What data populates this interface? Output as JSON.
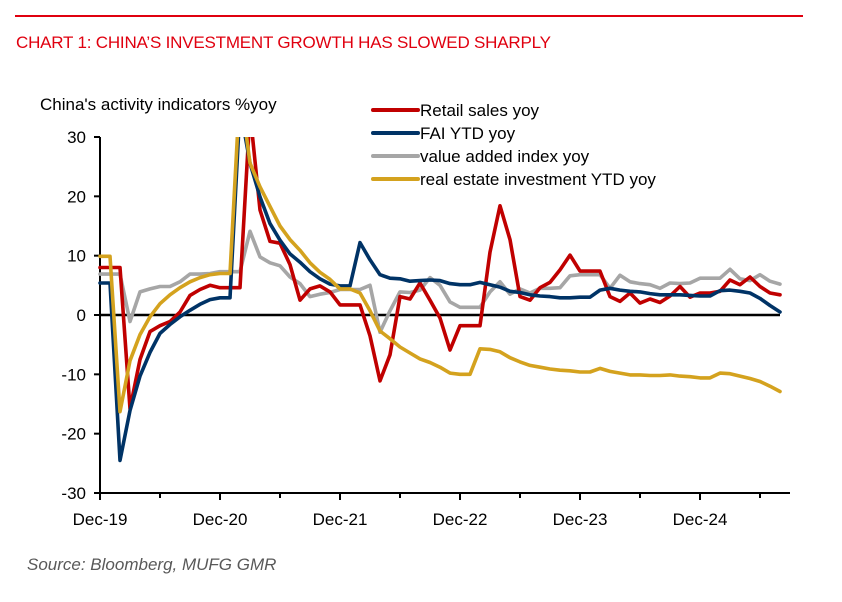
{
  "header": {
    "title": "CHART 1: CHINA’S INVESTMENT GROWTH HAS SLOWED SHARPLY"
  },
  "footer": {
    "source": "Source: Bloomberg, MUFG GMR"
  },
  "chart_data": {
    "type": "line",
    "title": "CHART 1: CHINA’S INVESTMENT GROWTH HAS SLOWED SHARPLY",
    "ylabel": "China's activity indicators %yoy",
    "xlabel": "",
    "ylim": [
      -30,
      30
    ],
    "yticks": [
      30,
      20,
      10,
      0,
      -10,
      -20,
      -30
    ],
    "ytick_labels": [
      "30",
      "20",
      "10",
      "0",
      "-10",
      "-20",
      "-30"
    ],
    "x_start": "Dec-19",
    "x_end": "Sep-25",
    "xtick_labels": [
      "Dec-19",
      "Dec-20",
      "Dec-21",
      "Dec-22",
      "Dec-23",
      "Dec-24"
    ],
    "xtick_months": [
      0,
      12,
      24,
      36,
      48,
      60
    ],
    "minor_tick_months": [
      6,
      18,
      30,
      42,
      54,
      66
    ],
    "axis_end_month": 69,
    "zero_line": true,
    "grid": false,
    "legend_position": "top-center",
    "colors": {
      "retail": "#c00000",
      "fai": "#003366",
      "vai": "#a6a6a6",
      "re": "#d4a21e"
    },
    "x": [
      "Dec-19",
      "Jan-20",
      "Feb-20",
      "Mar-20",
      "Apr-20",
      "May-20",
      "Jun-20",
      "Jul-20",
      "Aug-20",
      "Sep-20",
      "Oct-20",
      "Nov-20",
      "Dec-20",
      "Jan-21",
      "Feb-21",
      "Mar-21",
      "Apr-21",
      "May-21",
      "Jun-21",
      "Jul-21",
      "Aug-21",
      "Sep-21",
      "Oct-21",
      "Nov-21",
      "Dec-21",
      "Jan-22",
      "Feb-22",
      "Mar-22",
      "Apr-22",
      "May-22",
      "Jun-22",
      "Jul-22",
      "Aug-22",
      "Sep-22",
      "Oct-22",
      "Nov-22",
      "Dec-22",
      "Jan-23",
      "Feb-23",
      "Mar-23",
      "Apr-23",
      "May-23",
      "Jun-23",
      "Jul-23",
      "Aug-23",
      "Sep-23",
      "Oct-23",
      "Nov-23",
      "Dec-23",
      "Jan-24",
      "Feb-24",
      "Mar-24",
      "Apr-24",
      "May-24",
      "Jun-24",
      "Jul-24",
      "Aug-24",
      "Sep-24",
      "Oct-24",
      "Nov-24",
      "Dec-24",
      "Jan-25",
      "Feb-25",
      "Mar-25",
      "Apr-25",
      "May-25",
      "Jun-25",
      "Jul-25",
      "Aug-25"
    ],
    "series": [
      {
        "key": "retail",
        "name": "Retail sales yoy",
        "values": [
          8.0,
          8.0,
          8.0,
          -15.8,
          -7.5,
          -2.8,
          -1.8,
          -1.1,
          0.5,
          3.3,
          4.3,
          5.0,
          4.6,
          4.6,
          4.6,
          34.2,
          17.7,
          12.4,
          12.1,
          8.5,
          2.5,
          4.4,
          4.9,
          3.9,
          1.7,
          1.7,
          1.7,
          -3.5,
          -11.1,
          -6.7,
          3.1,
          2.7,
          5.4,
          2.5,
          -0.5,
          -5.9,
          -1.8,
          -1.8,
          -1.8,
          10.6,
          18.4,
          12.7,
          3.1,
          2.5,
          4.6,
          5.5,
          7.6,
          10.1,
          7.4,
          7.4,
          7.4,
          3.1,
          2.3,
          3.7,
          2.0,
          2.7,
          2.1,
          3.2,
          4.8,
          3.0,
          3.7,
          3.7,
          4.0,
          5.9,
          5.1,
          6.4,
          4.8,
          3.7,
          3.4
        ],
        "clipped_at_top": true
      },
      {
        "key": "fai",
        "name": "FAI YTD yoy",
        "values": [
          5.4,
          5.4,
          -24.5,
          -16.1,
          -10.3,
          -6.3,
          -3.1,
          -1.6,
          -0.3,
          0.8,
          1.8,
          2.6,
          2.9,
          2.9,
          35.0,
          25.6,
          19.9,
          15.4,
          12.6,
          10.3,
          8.9,
          7.3,
          6.1,
          5.2,
          4.9,
          4.9,
          12.2,
          9.3,
          6.8,
          6.2,
          6.1,
          5.7,
          5.8,
          5.9,
          5.8,
          5.3,
          5.1,
          5.1,
          5.5,
          5.1,
          4.7,
          4.0,
          3.8,
          3.4,
          3.2,
          3.1,
          2.9,
          2.9,
          3.0,
          3.0,
          4.2,
          4.5,
          4.2,
          4.0,
          3.9,
          3.6,
          3.4,
          3.4,
          3.4,
          3.3,
          3.2,
          3.2,
          4.1,
          4.2,
          4.0,
          3.7,
          2.8,
          1.6,
          0.5
        ],
        "clipped_at_top": true
      },
      {
        "key": "vai",
        "name": "value added index yoy",
        "values": [
          6.9,
          6.9,
          6.9,
          -1.1,
          3.9,
          4.4,
          4.8,
          4.8,
          5.6,
          6.9,
          6.9,
          7.0,
          7.3,
          7.3,
          7.3,
          14.1,
          9.8,
          8.8,
          8.3,
          6.4,
          5.3,
          3.1,
          3.5,
          3.8,
          4.3,
          4.3,
          4.3,
          5.0,
          -2.9,
          0.7,
          3.9,
          3.8,
          4.2,
          6.3,
          5.0,
          2.2,
          1.3,
          1.3,
          1.3,
          3.9,
          5.6,
          3.5,
          4.4,
          3.7,
          4.5,
          4.5,
          4.6,
          6.6,
          6.8,
          6.8,
          6.8,
          4.5,
          6.7,
          5.6,
          5.3,
          5.1,
          4.5,
          5.4,
          5.3,
          5.4,
          6.2,
          6.2,
          6.2,
          7.7,
          6.1,
          5.8,
          6.8,
          5.7,
          5.2
        ],
        "clipped_at_top": false
      },
      {
        "key": "re",
        "name": "real estate investment YTD yoy",
        "values": [
          9.9,
          9.9,
          -16.3,
          -7.7,
          -3.3,
          -0.3,
          1.9,
          3.4,
          4.6,
          5.6,
          6.3,
          6.8,
          7.0,
          7.0,
          38.3,
          25.6,
          21.6,
          18.3,
          15.0,
          12.7,
          10.9,
          8.8,
          7.2,
          6.0,
          4.4,
          4.4,
          3.7,
          0.7,
          -2.7,
          -4.0,
          -5.4,
          -6.4,
          -7.4,
          -8.0,
          -8.8,
          -9.8,
          -10.0,
          -10.0,
          -5.7,
          -5.8,
          -6.2,
          -7.2,
          -7.9,
          -8.5,
          -8.8,
          -9.1,
          -9.3,
          -9.4,
          -9.6,
          -9.6,
          -9.0,
          -9.5,
          -9.8,
          -10.1,
          -10.1,
          -10.2,
          -10.2,
          -10.1,
          -10.3,
          -10.4,
          -10.6,
          -10.6,
          -9.8,
          -9.9,
          -10.3,
          -10.7,
          -11.2,
          -12.0,
          -12.9
        ],
        "clipped_at_top": true
      }
    ]
  }
}
